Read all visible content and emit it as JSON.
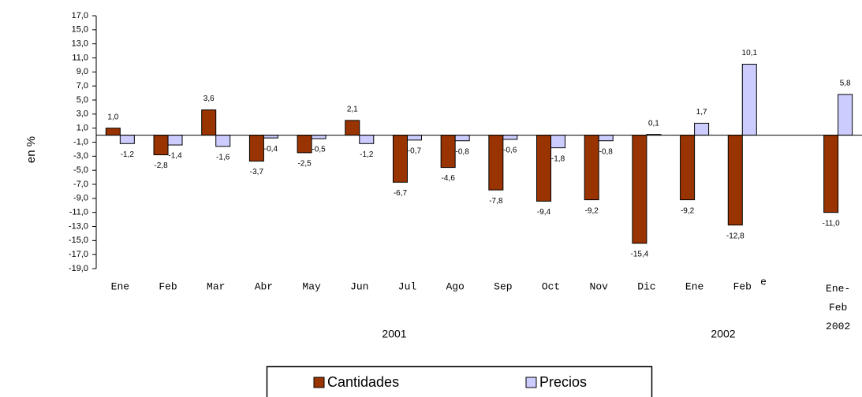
{
  "chart_data": {
    "type": "bar",
    "y_label": "en %",
    "categories": [
      "Ene",
      "Feb",
      "Mar",
      "Abr",
      "May",
      "Jun",
      "Jul",
      "Ago",
      "Sep",
      "Oct",
      "Nov",
      "Dic",
      "Ene",
      "Feb",
      null,
      "Ene-Feb 2002"
    ],
    "series": [
      {
        "name": "Cantidades",
        "color": "#993300",
        "values": [
          1.0,
          -2.8,
          3.6,
          -3.7,
          -2.5,
          2.1,
          -6.7,
          -4.6,
          -7.8,
          -9.4,
          -9.2,
          -15.4,
          -9.2,
          -12.8,
          null,
          -11.0
        ],
        "value_labels": [
          "1,0",
          "-2,8",
          "3,6",
          "-3,7",
          "-2,5",
          "2,1",
          "-6,7",
          "-4,6",
          "-7,8",
          "-9,4",
          "-9,2",
          "-15,4",
          "-9,2",
          "-12,8",
          null,
          "-11,0"
        ]
      },
      {
        "name": "Precios",
        "color": "#ccccff",
        "values": [
          -1.2,
          -1.4,
          -1.6,
          -0.4,
          -0.5,
          -1.2,
          -0.7,
          -0.8,
          -0.6,
          -1.8,
          -0.8,
          0.1,
          1.7,
          10.1,
          null,
          5.8
        ],
        "value_labels": [
          "-1,2",
          "-1,4",
          "-1,6",
          "-0,4",
          "-0,5",
          "-1,2",
          "-0,7",
          "-0,8",
          "-0,6",
          "-1,8",
          "-0,8",
          "0,1",
          "1,7",
          "10,1",
          null,
          "5,8"
        ]
      }
    ],
    "ylim": [
      -19,
      17
    ],
    "yticks": [
      {
        "value": 17,
        "label": "17,0"
      },
      {
        "value": 15,
        "label": "15,0"
      },
      {
        "value": 13,
        "label": "13,0"
      },
      {
        "value": 11,
        "label": "11,0"
      },
      {
        "value": 9,
        "label": "9,0"
      },
      {
        "value": 7,
        "label": "7,0"
      },
      {
        "value": 5,
        "label": "5,0"
      },
      {
        "value": 3,
        "label": "3,0"
      },
      {
        "value": 1,
        "label": "1,0"
      },
      {
        "value": -1,
        "label": "-1,0"
      },
      {
        "value": -3,
        "label": "-3,0"
      },
      {
        "value": -5,
        "label": "-5,0"
      },
      {
        "value": -7,
        "label": "-7,0"
      },
      {
        "value": -9,
        "label": "-9,0"
      },
      {
        "value": -11,
        "label": "-11,0"
      },
      {
        "value": -13,
        "label": "-13,0"
      },
      {
        "value": -15,
        "label": "-15,0"
      },
      {
        "value": -17,
        "label": "-17,0"
      },
      {
        "value": -19,
        "label": "-19,0"
      }
    ],
    "annotations": [
      "2001",
      "2002",
      "e"
    ],
    "legend": "bottom"
  }
}
